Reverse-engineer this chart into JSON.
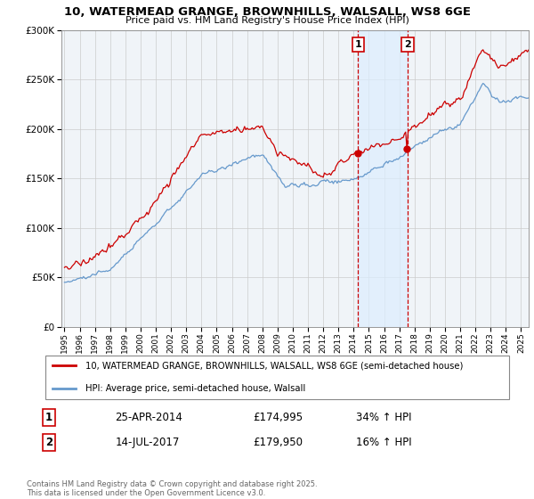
{
  "title_line1": "10, WATERMEAD GRANGE, BROWNHILLS, WALSALL, WS8 6GE",
  "title_line2": "Price paid vs. HM Land Registry's House Price Index (HPI)",
  "red_label": "10, WATERMEAD GRANGE, BROWNHILLS, WALSALL, WS8 6GE (semi-detached house)",
  "blue_label": "HPI: Average price, semi-detached house, Walsall",
  "sale1_date": "25-APR-2014",
  "sale1_price": 174995,
  "sale1_pct": "34% ↑ HPI",
  "sale1_year": 2014.29,
  "sale2_date": "14-JUL-2017",
  "sale2_price": 179950,
  "sale2_pct": "16% ↑ HPI",
  "sale2_year": 2017.54,
  "footer": "Contains HM Land Registry data © Crown copyright and database right 2025.\nThis data is licensed under the Open Government Licence v3.0.",
  "red_color": "#cc0000",
  "blue_color": "#6699cc",
  "shade_color": "#ddeeff",
  "ylim_max": 300000,
  "xlim_start": 1994.8,
  "xlim_end": 2025.5,
  "bg_color": "#f0f4f8"
}
